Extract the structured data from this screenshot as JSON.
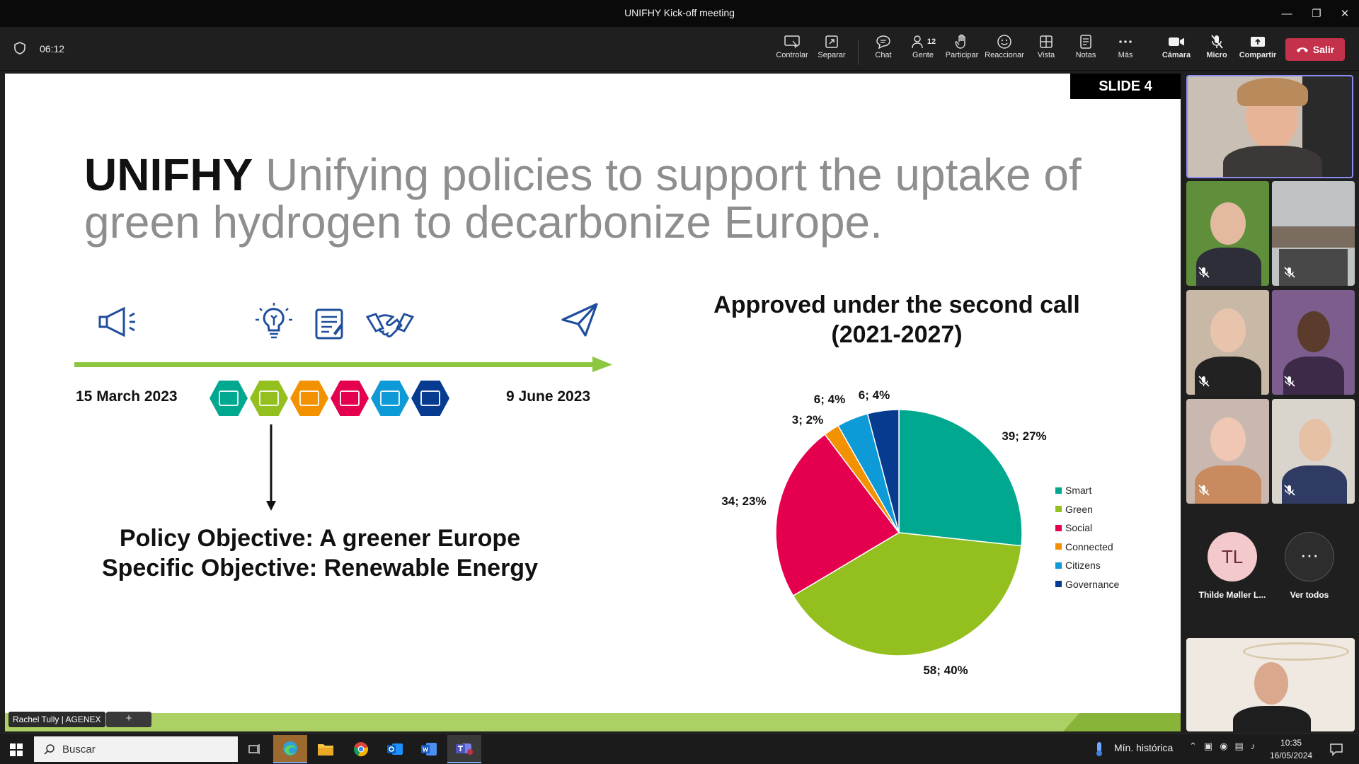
{
  "window": {
    "title": "UNIFHY Kick-off meeting",
    "controls": [
      "minimize",
      "restore",
      "close"
    ]
  },
  "toolbar": {
    "timer": "06:12",
    "buttons": [
      {
        "label": "Controlar",
        "icon": "control-icon"
      },
      {
        "label": "Separar",
        "icon": "popout-icon"
      },
      {
        "label": "Chat",
        "icon": "chat-icon"
      },
      {
        "label": "Gente",
        "icon": "people-icon",
        "badge": "12"
      },
      {
        "label": "Participar",
        "icon": "raise-hand-icon"
      },
      {
        "label": "Reaccionar",
        "icon": "reaction-icon"
      },
      {
        "label": "Vista",
        "icon": "view-icon"
      },
      {
        "label": "Notas",
        "icon": "notes-icon"
      },
      {
        "label": "Más",
        "icon": "more-icon"
      },
      {
        "label": "Cámara",
        "icon": "camera-icon"
      },
      {
        "label": "Micro",
        "icon": "mic-off-icon"
      },
      {
        "label": "Compartir",
        "icon": "share-icon"
      }
    ],
    "leave_label": "Salir",
    "leave_color": "#c4314b"
  },
  "slide": {
    "tag": "SLIDE 4",
    "brand": "UNIFHY",
    "headline": " Unifying policies to support the uptake of green hydrogen to decarbonize Europe.",
    "start_date": "15 March 2023",
    "end_date": "9 June 2023",
    "objective_1": "Policy Objective: A greener Europe",
    "objective_2": "Specific Objective: Renewable Energy",
    "timeline_color": "#8dc63f",
    "icon_color": "#1f4e9e",
    "hex_icons": [
      {
        "name": "smart-hex-icon",
        "color": "#00a88f"
      },
      {
        "name": "green-hex-icon",
        "color": "#93c01f"
      },
      {
        "name": "connected-hex-icon",
        "color": "#f39200"
      },
      {
        "name": "social-hex-icon",
        "color": "#e5004f"
      },
      {
        "name": "citizens-hex-icon",
        "color": "#0e9ad7"
      },
      {
        "name": "governance-hex-icon",
        "color": "#063b8f"
      }
    ]
  },
  "chart_data": {
    "type": "pie",
    "title": "Approved under the second call (2021-2027)",
    "title_line_1": "Approved under the second call",
    "title_line_2": "(2021-2027)",
    "slices": [
      {
        "name": "Smart",
        "value": 39,
        "percent": 27,
        "label": "39; 27%",
        "color": "#00a88f"
      },
      {
        "name": "Green",
        "value": 58,
        "percent": 40,
        "label": "58; 40%",
        "color": "#93c01f"
      },
      {
        "name": "Social",
        "value": 34,
        "percent": 23,
        "label": "34; 23%",
        "color": "#e5004f"
      },
      {
        "name": "Connected",
        "value": 3,
        "percent": 2,
        "label": "3; 2%",
        "color": "#f39200"
      },
      {
        "name": "Citizens",
        "value": 6,
        "percent": 4,
        "label": "6; 4%",
        "color": "#0e9ad7"
      },
      {
        "name": "Governance",
        "value": 6,
        "percent": 4,
        "label": "6; 4%",
        "color": "#063b8f"
      }
    ],
    "legend_placement": "right"
  },
  "presenter": {
    "name": "Rachel Tully | AGENEX",
    "extra": "+"
  },
  "participants": {
    "more_name": "Thilde Møller L...",
    "more_initials": "TL",
    "see_all_label": "Ver todos",
    "see_all_glyph": "···"
  },
  "taskbar": {
    "search_placeholder": "Buscar",
    "weather": "Mín. histórica",
    "time": "10:35",
    "date": "16/05/2024"
  }
}
